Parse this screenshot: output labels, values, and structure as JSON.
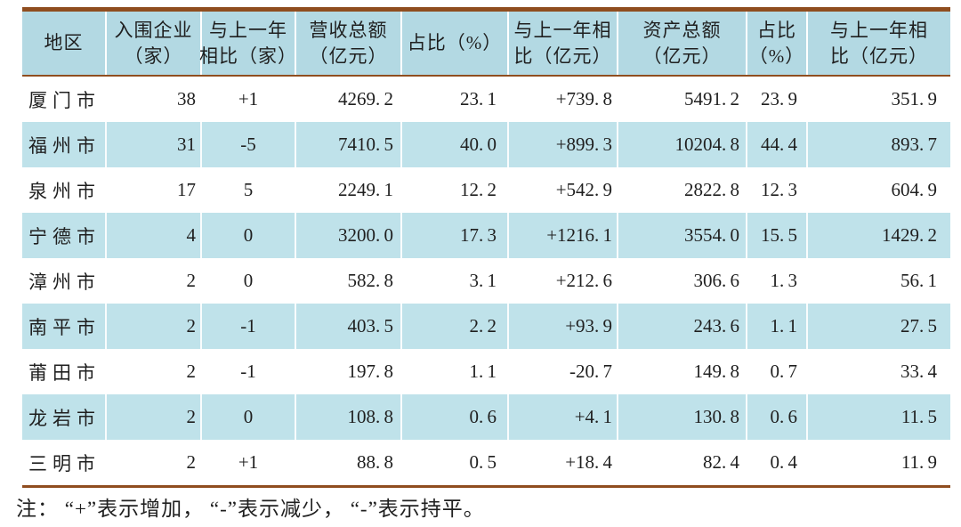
{
  "colors": {
    "header_blue": "#b3d9e3",
    "row_blue": "#bfe2ea",
    "border_brown": "#8f4d1f"
  },
  "note": "注： “+”表示增加， “-”表示减少， “-”表示持平。",
  "chart_data": {
    "type": "table",
    "title": "",
    "columns": [
      {
        "line1": "地区",
        "line2": ""
      },
      {
        "line1": "入围企业",
        "line2": "（家）"
      },
      {
        "line1": "与上一年",
        "line2": "相比（家）"
      },
      {
        "line1": "营收总额",
        "line2": "（亿元）"
      },
      {
        "line1": "占比（%）",
        "line2": ""
      },
      {
        "line1": "与上一年相",
        "line2": "比（亿元）"
      },
      {
        "line1": "资产总额",
        "line2": "（亿元）"
      },
      {
        "line1": "占比",
        "line2": "（%）"
      },
      {
        "line1": "与上一年相",
        "line2": "比（亿元）"
      }
    ],
    "rows": [
      [
        "厦门市",
        "38",
        "+1",
        "4269.2",
        "23.1",
        "+739.8",
        "5491.2",
        "23.9",
        "351.9"
      ],
      [
        "福州市",
        "31",
        "-5",
        "7410.5",
        "40.0",
        "+899.3",
        "10204.8",
        "44.4",
        "893.7"
      ],
      [
        "泉州市",
        "17",
        "5",
        "2249.1",
        "12.2",
        "+542.9",
        "2822.8",
        "12.3",
        "604.9"
      ],
      [
        "宁德市",
        "4",
        "0",
        "3200.0",
        "17.3",
        "+1216.1",
        "3554.0",
        "15.5",
        "1429.2"
      ],
      [
        "漳州市",
        "2",
        "0",
        "582.8",
        "3.1",
        "+212.6",
        "306.6",
        "1.3",
        "56.1"
      ],
      [
        "南平市",
        "2",
        "-1",
        "403.5",
        "2.2",
        "+93.9",
        "243.6",
        "1.1",
        "27.5"
      ],
      [
        "莆田市",
        "2",
        "-1",
        "197.8",
        "1.1",
        "-20.7",
        "149.8",
        "0.7",
        "33.4"
      ],
      [
        "龙岩市",
        "2",
        "0",
        "108.8",
        "0.6",
        "+4.1",
        "130.8",
        "0.6",
        "11.5"
      ],
      [
        "三明市",
        "2",
        "+1",
        "88.8",
        "0.5",
        "+18.4",
        "82.4",
        "0.4",
        "11.9"
      ]
    ]
  }
}
